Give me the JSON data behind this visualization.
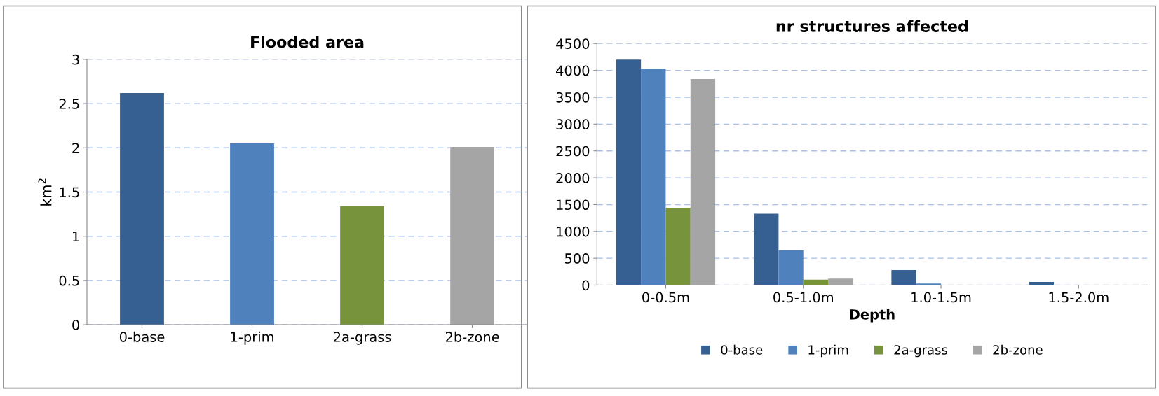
{
  "chart_data": [
    {
      "type": "bar",
      "title": "Flooded area",
      "ylabel": "km$^{2}$",
      "categories": [
        "0-base",
        "1-prim",
        "2a-grass",
        "2b-zone"
      ],
      "values": [
        2.62,
        2.05,
        1.34,
        2.01
      ],
      "colors": [
        "#366092",
        "#4f81bd",
        "#77933c",
        "#a5a5a5"
      ],
      "ylim": [
        0,
        3
      ],
      "yticks": [
        0,
        0.5,
        1,
        1.5,
        2,
        2.5,
        3
      ],
      "grid": "y",
      "legend": false
    },
    {
      "type": "bar",
      "title": "nr structures affected",
      "xlabel": "Depth",
      "categories": [
        "0-0.5m",
        "0.5-1.0m",
        "1.0-1.5m",
        "1.5-2.0m"
      ],
      "series": [
        {
          "name": "0-base",
          "color": "#366092",
          "values": [
            4200,
            1330,
            280,
            60
          ]
        },
        {
          "name": "1-prim",
          "color": "#4f81bd",
          "values": [
            4030,
            650,
            30,
            0
          ]
        },
        {
          "name": "2a-grass",
          "color": "#77933c",
          "values": [
            1440,
            100,
            0,
            0
          ]
        },
        {
          "name": "2b-zone",
          "color": "#a5a5a5",
          "values": [
            3840,
            120,
            0,
            0
          ]
        }
      ],
      "ylim": [
        0,
        4500
      ],
      "yticks": [
        0,
        500,
        1000,
        1500,
        2000,
        2500,
        3000,
        3500,
        4000,
        4500
      ],
      "grid": "y",
      "legend": "bottom"
    }
  ]
}
